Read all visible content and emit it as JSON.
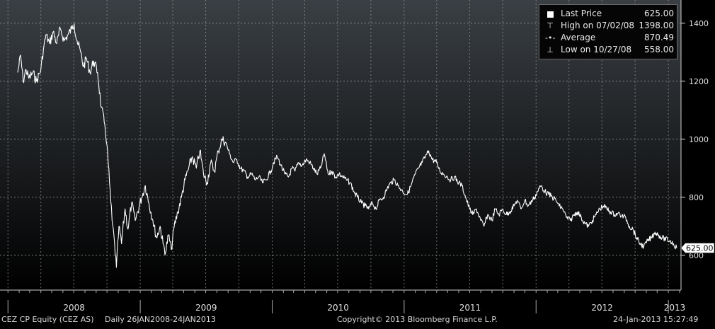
{
  "chart_data": {
    "type": "line",
    "series": [
      {
        "values": [
          [
            "2008-01-28",
            1230
          ],
          [
            "2008-02-05",
            1290
          ],
          [
            "2008-02-12",
            1200
          ],
          [
            "2008-02-20",
            1240
          ],
          [
            "2008-02-28",
            1210
          ],
          [
            "2008-03-10",
            1230
          ],
          [
            "2008-03-20",
            1200
          ],
          [
            "2008-04-01",
            1240
          ],
          [
            "2008-04-08",
            1310
          ],
          [
            "2008-04-15",
            1360
          ],
          [
            "2008-04-25",
            1330
          ],
          [
            "2008-05-05",
            1370
          ],
          [
            "2008-05-15",
            1330
          ],
          [
            "2008-05-25",
            1380
          ],
          [
            "2008-06-05",
            1340
          ],
          [
            "2008-06-15",
            1360
          ],
          [
            "2008-06-25",
            1380
          ],
          [
            "2008-07-02",
            1398
          ],
          [
            "2008-07-10",
            1340
          ],
          [
            "2008-07-20",
            1300
          ],
          [
            "2008-07-28",
            1250
          ],
          [
            "2008-08-05",
            1280
          ],
          [
            "2008-08-15",
            1230
          ],
          [
            "2008-08-25",
            1270
          ],
          [
            "2008-09-05",
            1230
          ],
          [
            "2008-09-15",
            1110
          ],
          [
            "2008-09-25",
            1050
          ],
          [
            "2008-10-01",
            980
          ],
          [
            "2008-10-08",
            850
          ],
          [
            "2008-10-15",
            720
          ],
          [
            "2008-10-22",
            640
          ],
          [
            "2008-10-27",
            558
          ],
          [
            "2008-11-03",
            700
          ],
          [
            "2008-11-10",
            640
          ],
          [
            "2008-11-20",
            760
          ],
          [
            "2008-11-28",
            690
          ],
          [
            "2008-12-08",
            780
          ],
          [
            "2008-12-18",
            720
          ],
          [
            "2009-01-05",
            800
          ],
          [
            "2009-01-15",
            840
          ],
          [
            "2009-01-25",
            780
          ],
          [
            "2009-02-05",
            720
          ],
          [
            "2009-02-15",
            660
          ],
          [
            "2009-02-25",
            700
          ],
          [
            "2009-03-05",
            640
          ],
          [
            "2009-03-12",
            610
          ],
          [
            "2009-03-20",
            670
          ],
          [
            "2009-03-28",
            620
          ],
          [
            "2009-04-05",
            700
          ],
          [
            "2009-04-15",
            750
          ],
          [
            "2009-04-25",
            800
          ],
          [
            "2009-05-05",
            860
          ],
          [
            "2009-05-15",
            900
          ],
          [
            "2009-05-25",
            940
          ],
          [
            "2009-06-05",
            900
          ],
          [
            "2009-06-15",
            960
          ],
          [
            "2009-06-25",
            880
          ],
          [
            "2009-07-05",
            850
          ],
          [
            "2009-07-15",
            920
          ],
          [
            "2009-07-25",
            890
          ],
          [
            "2009-08-05",
            960
          ],
          [
            "2009-08-15",
            1000
          ],
          [
            "2009-08-25",
            990
          ],
          [
            "2009-09-05",
            950
          ],
          [
            "2009-09-15",
            920
          ],
          [
            "2009-09-25",
            930
          ],
          [
            "2009-10-05",
            900
          ],
          [
            "2009-10-15",
            890
          ],
          [
            "2009-10-25",
            870
          ],
          [
            "2009-11-05",
            880
          ],
          [
            "2009-11-15",
            860
          ],
          [
            "2009-11-25",
            870
          ],
          [
            "2009-12-05",
            850
          ],
          [
            "2009-12-15",
            860
          ],
          [
            "2009-12-28",
            890
          ],
          [
            "2010-01-05",
            920
          ],
          [
            "2010-01-15",
            940
          ],
          [
            "2010-01-25",
            910
          ],
          [
            "2010-02-05",
            880
          ],
          [
            "2010-02-15",
            870
          ],
          [
            "2010-02-25",
            900
          ],
          [
            "2010-03-05",
            890
          ],
          [
            "2010-03-15",
            920
          ],
          [
            "2010-03-25",
            910
          ],
          [
            "2010-04-05",
            930
          ],
          [
            "2010-04-15",
            920
          ],
          [
            "2010-04-25",
            900
          ],
          [
            "2010-05-05",
            880
          ],
          [
            "2010-05-15",
            900
          ],
          [
            "2010-05-25",
            950
          ],
          [
            "2010-06-05",
            880
          ],
          [
            "2010-06-15",
            890
          ],
          [
            "2010-06-25",
            870
          ],
          [
            "2010-07-05",
            880
          ],
          [
            "2010-07-15",
            870
          ],
          [
            "2010-07-25",
            860
          ],
          [
            "2010-08-05",
            850
          ],
          [
            "2010-08-15",
            820
          ],
          [
            "2010-08-25",
            800
          ],
          [
            "2010-09-05",
            780
          ],
          [
            "2010-09-15",
            770
          ],
          [
            "2010-09-25",
            760
          ],
          [
            "2010-10-05",
            780
          ],
          [
            "2010-10-15",
            760
          ],
          [
            "2010-10-25",
            790
          ],
          [
            "2010-11-05",
            800
          ],
          [
            "2010-11-15",
            830
          ],
          [
            "2010-11-25",
            850
          ],
          [
            "2010-12-05",
            860
          ],
          [
            "2010-12-15",
            840
          ],
          [
            "2010-12-28",
            820
          ],
          [
            "2011-01-10",
            810
          ],
          [
            "2011-01-20",
            840
          ],
          [
            "2011-02-01",
            880
          ],
          [
            "2011-02-10",
            900
          ],
          [
            "2011-02-20",
            920
          ],
          [
            "2011-03-01",
            940
          ],
          [
            "2011-03-10",
            960
          ],
          [
            "2011-03-20",
            930
          ],
          [
            "2011-04-01",
            920
          ],
          [
            "2011-04-10",
            890
          ],
          [
            "2011-04-20",
            880
          ],
          [
            "2011-05-01",
            870
          ],
          [
            "2011-05-10",
            860
          ],
          [
            "2011-05-20",
            870
          ],
          [
            "2011-06-01",
            850
          ],
          [
            "2011-06-10",
            840
          ],
          [
            "2011-06-20",
            800
          ],
          [
            "2011-07-01",
            760
          ],
          [
            "2011-07-10",
            740
          ],
          [
            "2011-07-20",
            760
          ],
          [
            "2011-08-01",
            720
          ],
          [
            "2011-08-10",
            700
          ],
          [
            "2011-08-20",
            740
          ],
          [
            "2011-09-01",
            720
          ],
          [
            "2011-09-10",
            760
          ],
          [
            "2011-09-20",
            740
          ],
          [
            "2011-10-01",
            760
          ],
          [
            "2011-10-10",
            740
          ],
          [
            "2011-10-20",
            750
          ],
          [
            "2011-11-01",
            770
          ],
          [
            "2011-11-10",
            790
          ],
          [
            "2011-11-20",
            760
          ],
          [
            "2011-12-01",
            790
          ],
          [
            "2011-12-10",
            770
          ],
          [
            "2011-12-28",
            800
          ],
          [
            "2012-01-05",
            820
          ],
          [
            "2012-01-15",
            840
          ],
          [
            "2012-01-25",
            820
          ],
          [
            "2012-02-05",
            810
          ],
          [
            "2012-02-15",
            800
          ],
          [
            "2012-02-25",
            790
          ],
          [
            "2012-03-05",
            770
          ],
          [
            "2012-03-15",
            760
          ],
          [
            "2012-03-25",
            730
          ],
          [
            "2012-04-05",
            720
          ],
          [
            "2012-04-15",
            740
          ],
          [
            "2012-04-25",
            750
          ],
          [
            "2012-05-05",
            730
          ],
          [
            "2012-05-15",
            710
          ],
          [
            "2012-05-25",
            700
          ],
          [
            "2012-06-05",
            720
          ],
          [
            "2012-06-15",
            740
          ],
          [
            "2012-06-25",
            760
          ],
          [
            "2012-07-05",
            770
          ],
          [
            "2012-07-15",
            760
          ],
          [
            "2012-07-25",
            750
          ],
          [
            "2012-08-05",
            740
          ],
          [
            "2012-08-15",
            745
          ],
          [
            "2012-08-25",
            735
          ],
          [
            "2012-09-05",
            730
          ],
          [
            "2012-09-15",
            700
          ],
          [
            "2012-09-25",
            690
          ],
          [
            "2012-10-05",
            660
          ],
          [
            "2012-10-15",
            640
          ],
          [
            "2012-10-25",
            630
          ],
          [
            "2012-11-05",
            650
          ],
          [
            "2012-11-15",
            660
          ],
          [
            "2012-11-25",
            680
          ],
          [
            "2012-12-05",
            670
          ],
          [
            "2012-12-15",
            660
          ],
          [
            "2013-01-05",
            650
          ],
          [
            "2013-01-15",
            640
          ],
          [
            "2013-01-24",
            625
          ]
        ]
      }
    ],
    "x_ticks": [
      "2008",
      "2009",
      "2010",
      "2011",
      "2012",
      "2013"
    ],
    "y_ticks": [
      "600",
      "800",
      "1000",
      "1200",
      "1400"
    ],
    "ylim": [
      480,
      1480
    ],
    "xlim": [
      "2007-12-10",
      "2013-02-05"
    ],
    "grid": true,
    "last_value_label": "625.00",
    "legend": {
      "position": "top-right",
      "rows": [
        {
          "symbol": "square",
          "label": "Last Price",
          "value": "625.00"
        },
        {
          "symbol": "high-marker",
          "label": "High on 07/02/08",
          "value": "1398.00"
        },
        {
          "symbol": "average-marker",
          "label": "Average",
          "value": "870.49"
        },
        {
          "symbol": "low-marker",
          "label": "Low on 10/27/08",
          "value": "558.00"
        }
      ]
    }
  },
  "footer": {
    "ticker": "CEZ CP Equity (CEZ AS)",
    "range": "Daily 26JAN2008-24JAN2013",
    "copyright": "Copyright© 2013 Bloomberg Finance L.P.",
    "timestamp": "24-Jan-2013 15:27:49"
  },
  "colors": {
    "background_top": "#3a3f44",
    "background_bottom": "#000000",
    "line": "#ffffff",
    "grid": "#9a9a9a"
  }
}
